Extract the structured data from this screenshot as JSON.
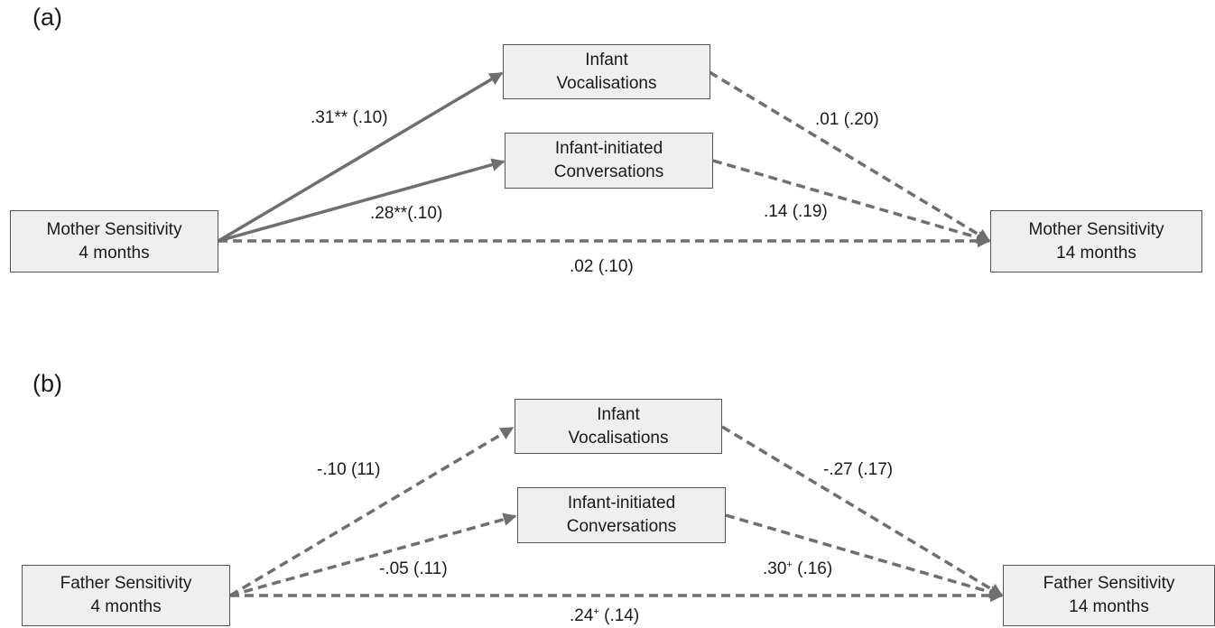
{
  "panel_a": {
    "label": "(a)",
    "nodes": {
      "predictor": [
        "Mother Sensitivity",
        "4 months"
      ],
      "mediator_vocal": [
        "Infant",
        "Vocalisations"
      ],
      "mediator_conv": [
        "Infant-initiated",
        "Conversations"
      ],
      "outcome": [
        "Mother Sensitivity",
        "14 months"
      ]
    },
    "coefficients": {
      "a_vocal": {
        "text": ".31** (.10)",
        "significant": true
      },
      "a_conv": {
        "text": ".28**(.10)",
        "significant": true
      },
      "b_vocal": {
        "text": ".01 (.20)",
        "significant": false
      },
      "b_conv": {
        "text": ".14 (.19)",
        "significant": false
      },
      "direct": {
        "text": ".02 (.10)",
        "significant": false
      }
    }
  },
  "panel_b": {
    "label": "(b)",
    "nodes": {
      "predictor": [
        "Father Sensitivity",
        "4 months"
      ],
      "mediator_vocal": [
        "Infant",
        "Vocalisations"
      ],
      "mediator_conv": [
        "Infant-initiated",
        "Conversations"
      ],
      "outcome": [
        "Father Sensitivity",
        "14 months"
      ]
    },
    "coefficients": {
      "a_vocal": {
        "text": "-.10 (11)",
        "significant": false
      },
      "a_conv": {
        "text": "-.05 (.11)",
        "significant": false
      },
      "b_vocal": {
        "text": "-.27 (.17)",
        "significant": false
      },
      "b_conv": {
        "pre": ".30",
        "sup": "+",
        "post": " (.16)",
        "significant": false
      },
      "direct": {
        "pre": ".24",
        "sup": "+",
        "post": " (.14)",
        "significant": false
      }
    }
  },
  "style": {
    "line_color": "#6f6f6f",
    "box_fill": "#efefef",
    "box_border": "#555555"
  }
}
